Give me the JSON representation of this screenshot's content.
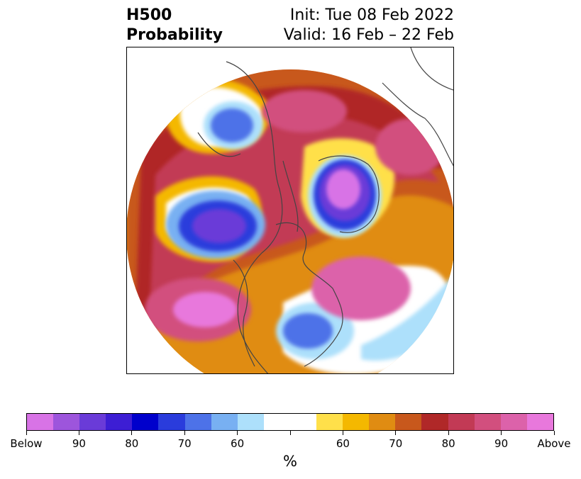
{
  "title": {
    "left_line1": "H500",
    "left_line2": "Probability",
    "right_line1": "Init: Tue 08 Feb 2022",
    "right_line2": "Valid: 16 Feb – 22 Feb"
  },
  "colorbar": {
    "unit": "%",
    "colors": [
      "#d873e6",
      "#9d55dc",
      "#6a3bd8",
      "#3d1ed4",
      "#0000cc",
      "#2a3cdc",
      "#4d72e8",
      "#78b0f2",
      "#ade0fb",
      "#ffffff",
      "#ffffff",
      "#ffe04a",
      "#f4b800",
      "#e08c12",
      "#c8581c",
      "#b02828",
      "#c23a55",
      "#d24f7e",
      "#dc62aa",
      "#e878dc"
    ],
    "tick_labels": [
      "Below",
      "90",
      "80",
      "70",
      "60",
      "",
      "60",
      "70",
      "80",
      "90",
      "Above"
    ]
  },
  "map": {
    "legend_colors": {
      "below_strong": "#6a3bd8",
      "below_mid": "#2a3cdc",
      "below_weak": "#78b0f2",
      "above_strong": "#dc62aa",
      "above_mid": "#c23a55",
      "above_weak": "#f4b800"
    }
  }
}
